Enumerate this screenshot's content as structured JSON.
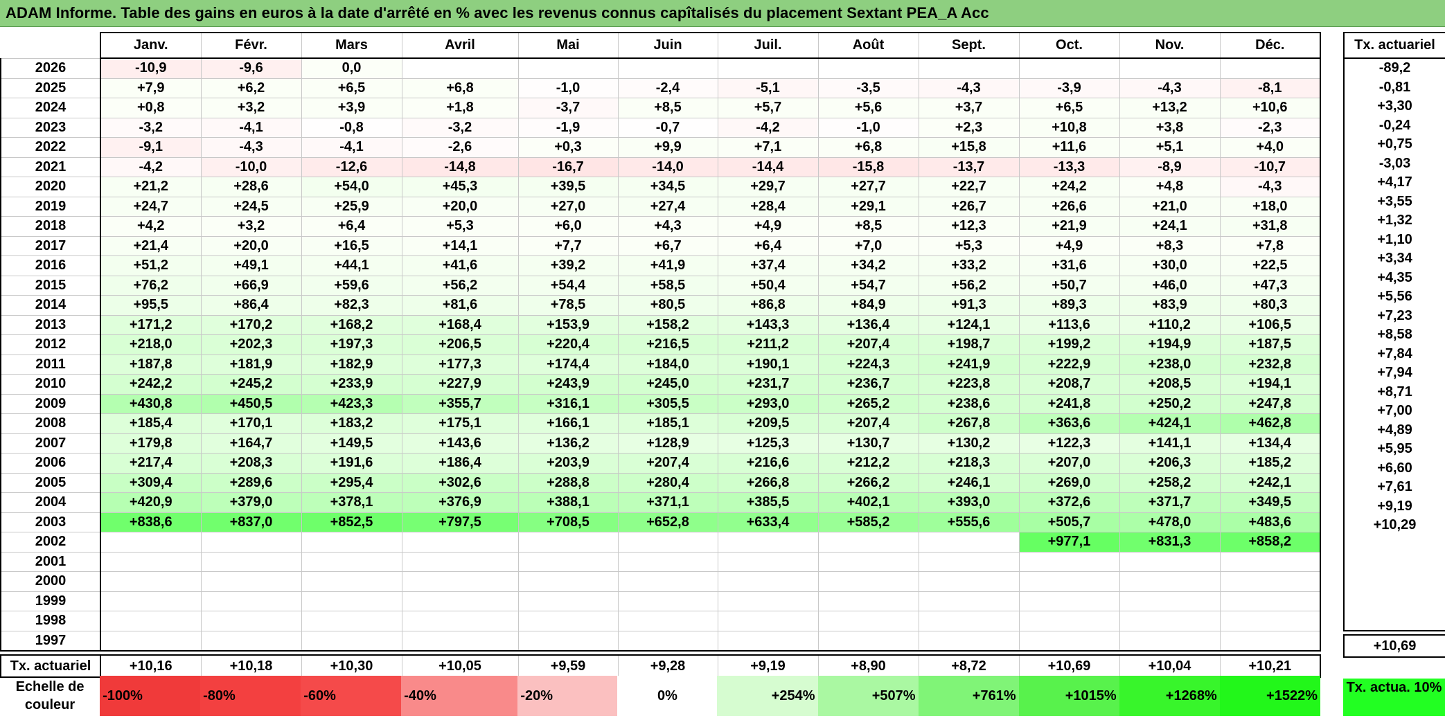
{
  "title": "ADAM Informe. Table des gains en euros à la date d'arrêté en % avec les revenus connus capîtalisés du placement Sextant PEA_A Acc",
  "months": [
    "Janv.",
    "Févr.",
    "Mars",
    "Avril",
    "Mai",
    "Juin",
    "Juil.",
    "Août",
    "Sept.",
    "Oct.",
    "Nov.",
    "Déc."
  ],
  "rate_header": "Tx. actuariel",
  "rows": [
    {
      "year": "2026",
      "values": [
        "-10,9",
        "-9,6",
        "0,0",
        "",
        "",
        "",
        "",
        "",
        "",
        "",
        "",
        ""
      ],
      "rate": "-89,2"
    },
    {
      "year": "2025",
      "values": [
        "+7,9",
        "+6,2",
        "+6,5",
        "+6,8",
        "-1,0",
        "-2,4",
        "-5,1",
        "-3,5",
        "-4,3",
        "-3,9",
        "-4,3",
        "-8,1"
      ],
      "rate": "-0,81"
    },
    {
      "year": "2024",
      "values": [
        "+0,8",
        "+3,2",
        "+3,9",
        "+1,8",
        "-3,7",
        "+8,5",
        "+5,7",
        "+5,6",
        "+3,7",
        "+6,5",
        "+13,2",
        "+10,6"
      ],
      "rate": "+3,30"
    },
    {
      "year": "2023",
      "values": [
        "-3,2",
        "-4,1",
        "-0,8",
        "-3,2",
        "-1,9",
        "-0,7",
        "-4,2",
        "-1,0",
        "+2,3",
        "+10,8",
        "+3,8",
        "-2,3"
      ],
      "rate": "-0,24"
    },
    {
      "year": "2022",
      "values": [
        "-9,1",
        "-4,3",
        "-4,1",
        "-2,6",
        "+0,3",
        "+9,9",
        "+7,1",
        "+6,8",
        "+15,8",
        "+11,6",
        "+5,1",
        "+4,0"
      ],
      "rate": "+0,75"
    },
    {
      "year": "2021",
      "values": [
        "-4,2",
        "-10,0",
        "-12,6",
        "-14,8",
        "-16,7",
        "-14,0",
        "-14,4",
        "-15,8",
        "-13,7",
        "-13,3",
        "-8,9",
        "-10,7"
      ],
      "rate": "-3,03"
    },
    {
      "year": "2020",
      "values": [
        "+21,2",
        "+28,6",
        "+54,0",
        "+45,3",
        "+39,5",
        "+34,5",
        "+29,7",
        "+27,7",
        "+22,7",
        "+24,2",
        "+4,8",
        "-4,3"
      ],
      "rate": "+4,17"
    },
    {
      "year": "2019",
      "values": [
        "+24,7",
        "+24,5",
        "+25,9",
        "+20,0",
        "+27,0",
        "+27,4",
        "+28,4",
        "+29,1",
        "+26,7",
        "+26,6",
        "+21,0",
        "+18,0"
      ],
      "rate": "+3,55"
    },
    {
      "year": "2018",
      "values": [
        "+4,2",
        "+3,2",
        "+6,4",
        "+5,3",
        "+6,0",
        "+4,3",
        "+4,9",
        "+8,5",
        "+12,3",
        "+21,9",
        "+24,1",
        "+31,8"
      ],
      "rate": "+1,32"
    },
    {
      "year": "2017",
      "values": [
        "+21,4",
        "+20,0",
        "+16,5",
        "+14,1",
        "+7,7",
        "+6,7",
        "+6,4",
        "+7,0",
        "+5,3",
        "+4,9",
        "+8,3",
        "+7,8"
      ],
      "rate": "+1,10"
    },
    {
      "year": "2016",
      "values": [
        "+51,2",
        "+49,1",
        "+44,1",
        "+41,6",
        "+39,2",
        "+41,9",
        "+37,4",
        "+34,2",
        "+33,2",
        "+31,6",
        "+30,0",
        "+22,5"
      ],
      "rate": "+3,34"
    },
    {
      "year": "2015",
      "values": [
        "+76,2",
        "+66,9",
        "+59,6",
        "+56,2",
        "+54,4",
        "+58,5",
        "+50,4",
        "+54,7",
        "+56,2",
        "+50,7",
        "+46,0",
        "+47,3"
      ],
      "rate": "+4,35"
    },
    {
      "year": "2014",
      "values": [
        "+95,5",
        "+86,4",
        "+82,3",
        "+81,6",
        "+78,5",
        "+80,5",
        "+86,8",
        "+84,9",
        "+91,3",
        "+89,3",
        "+83,9",
        "+80,3"
      ],
      "rate": "+5,56"
    },
    {
      "year": "2013",
      "values": [
        "+171,2",
        "+170,2",
        "+168,2",
        "+168,4",
        "+153,9",
        "+158,2",
        "+143,3",
        "+136,4",
        "+124,1",
        "+113,6",
        "+110,2",
        "+106,5"
      ],
      "rate": "+7,23"
    },
    {
      "year": "2012",
      "values": [
        "+218,0",
        "+202,3",
        "+197,3",
        "+206,5",
        "+220,4",
        "+216,5",
        "+211,2",
        "+207,4",
        "+198,7",
        "+199,2",
        "+194,9",
        "+187,5"
      ],
      "rate": "+8,58"
    },
    {
      "year": "2011",
      "values": [
        "+187,8",
        "+181,9",
        "+182,9",
        "+177,3",
        "+174,4",
        "+184,0",
        "+190,1",
        "+224,3",
        "+241,9",
        "+222,9",
        "+238,0",
        "+232,8"
      ],
      "rate": "+7,84"
    },
    {
      "year": "2010",
      "values": [
        "+242,2",
        "+245,2",
        "+233,9",
        "+227,9",
        "+243,9",
        "+245,0",
        "+231,7",
        "+236,7",
        "+223,8",
        "+208,7",
        "+208,5",
        "+194,1"
      ],
      "rate": "+7,94"
    },
    {
      "year": "2009",
      "values": [
        "+430,8",
        "+450,5",
        "+423,3",
        "+355,7",
        "+316,1",
        "+305,5",
        "+293,0",
        "+265,2",
        "+238,6",
        "+241,8",
        "+250,2",
        "+247,8"
      ],
      "rate": "+8,71"
    },
    {
      "year": "2008",
      "values": [
        "+185,4",
        "+170,1",
        "+183,2",
        "+175,1",
        "+166,1",
        "+185,1",
        "+209,5",
        "+207,4",
        "+267,8",
        "+363,6",
        "+424,1",
        "+462,8"
      ],
      "rate": "+7,00"
    },
    {
      "year": "2007",
      "values": [
        "+179,8",
        "+164,7",
        "+149,5",
        "+143,6",
        "+136,2",
        "+128,9",
        "+125,3",
        "+130,7",
        "+130,2",
        "+122,3",
        "+141,1",
        "+134,4"
      ],
      "rate": "+4,89"
    },
    {
      "year": "2006",
      "values": [
        "+217,4",
        "+208,3",
        "+191,6",
        "+186,4",
        "+203,9",
        "+207,4",
        "+216,6",
        "+212,2",
        "+218,3",
        "+207,0",
        "+206,3",
        "+185,2"
      ],
      "rate": "+5,95"
    },
    {
      "year": "2005",
      "values": [
        "+309,4",
        "+289,6",
        "+295,4",
        "+302,6",
        "+288,8",
        "+280,4",
        "+266,8",
        "+266,2",
        "+246,1",
        "+269,0",
        "+258,2",
        "+242,1"
      ],
      "rate": "+6,60"
    },
    {
      "year": "2004",
      "values": [
        "+420,9",
        "+379,0",
        "+378,1",
        "+376,9",
        "+388,1",
        "+371,1",
        "+385,5",
        "+402,1",
        "+393,0",
        "+372,6",
        "+371,7",
        "+349,5"
      ],
      "rate": "+7,61"
    },
    {
      "year": "2003",
      "values": [
        "+838,6",
        "+837,0",
        "+852,5",
        "+797,5",
        "+708,5",
        "+652,8",
        "+633,4",
        "+585,2",
        "+555,6",
        "+505,7",
        "+478,0",
        "+483,6"
      ],
      "rate": "+9,19"
    },
    {
      "year": "2002",
      "values": [
        "",
        "",
        "",
        "",
        "",
        "",
        "",
        "",
        "",
        "+977,1",
        "+831,3",
        "+858,2"
      ],
      "rate": "+10,29"
    },
    {
      "year": "2001",
      "values": [
        "",
        "",
        "",
        "",
        "",
        "",
        "",
        "",
        "",
        "",
        "",
        ""
      ],
      "rate": ""
    },
    {
      "year": "2000",
      "values": [
        "",
        "",
        "",
        "",
        "",
        "",
        "",
        "",
        "",
        "",
        "",
        ""
      ],
      "rate": ""
    },
    {
      "year": "1999",
      "values": [
        "",
        "",
        "",
        "",
        "",
        "",
        "",
        "",
        "",
        "",
        "",
        ""
      ],
      "rate": ""
    },
    {
      "year": "1998",
      "values": [
        "",
        "",
        "",
        "",
        "",
        "",
        "",
        "",
        "",
        "",
        "",
        ""
      ],
      "rate": ""
    },
    {
      "year": "1997",
      "values": [
        "",
        "",
        "",
        "",
        "",
        "",
        "",
        "",
        "",
        "",
        "",
        ""
      ],
      "rate": ""
    }
  ],
  "average_row": {
    "label": "Tx. actuariel",
    "values": [
      "+10,16",
      "+10,18",
      "+10,30",
      "+10,05",
      "+9,59",
      "+9,28",
      "+9,19",
      "+8,90",
      "+8,72",
      "+10,69",
      "+10,04",
      "+10,21"
    ],
    "overall": "+10,69"
  },
  "scale": {
    "label": "Echelle de couleur",
    "items": [
      {
        "label": "-100%",
        "color": "#f03a3a",
        "align": "left"
      },
      {
        "label": "-80%",
        "color": "#f34040",
        "align": "left"
      },
      {
        "label": "-60%",
        "color": "#f54a4a",
        "align": "left"
      },
      {
        "label": "-40%",
        "color": "#f98a8a",
        "align": "left"
      },
      {
        "label": "-20%",
        "color": "#fbc0c0",
        "align": "left"
      },
      {
        "label": "0%",
        "color": "#ffffff",
        "align": "center"
      },
      {
        "label": "+254%",
        "color": "#d6fcd0",
        "align": "right"
      },
      {
        "label": "+507%",
        "color": "#aaf8a2",
        "align": "right"
      },
      {
        "label": "+761%",
        "color": "#80f477",
        "align": "right"
      },
      {
        "label": "+1015%",
        "color": "#58f24c",
        "align": "right"
      },
      {
        "label": "+1268%",
        "color": "#38f52b",
        "align": "right"
      },
      {
        "label": "+1522%",
        "color": "#22f71a",
        "align": "right"
      }
    ],
    "actuarial_label": "Tx. actua. 10%",
    "actuarial_color": "#22ff22"
  },
  "colors": {
    "title_bg": "#8ecf80",
    "negative": "#ffb8b8",
    "positive": "#66ff66"
  }
}
